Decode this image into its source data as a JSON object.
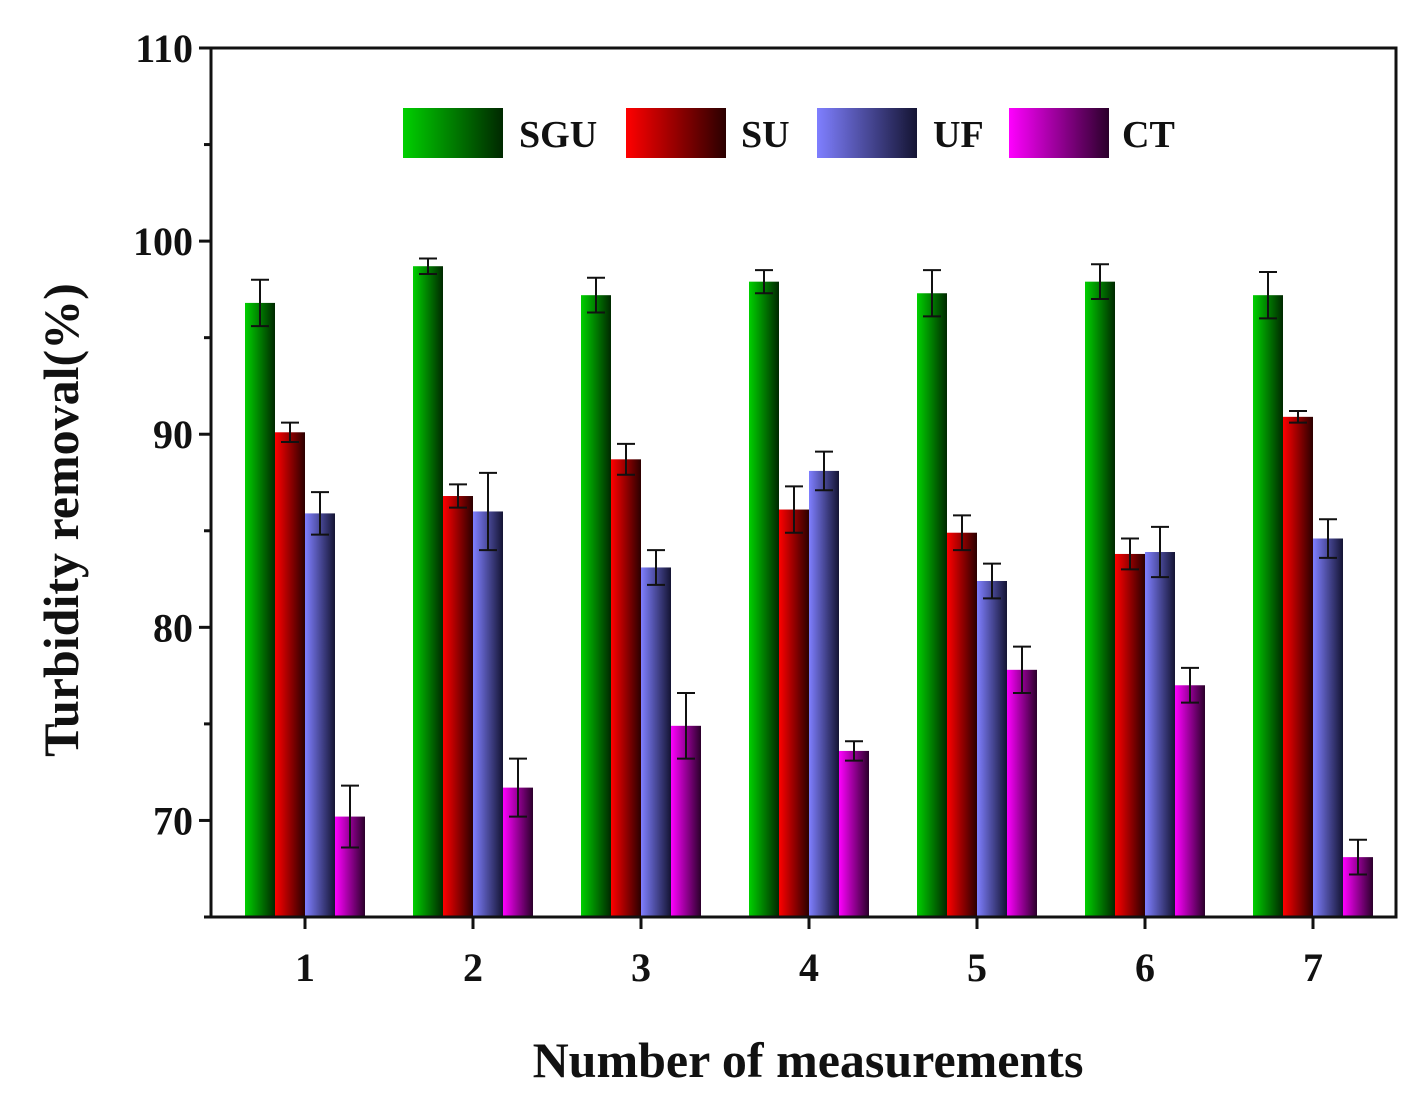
{
  "chart_data": {
    "type": "bar",
    "title": "",
    "xlabel": "Number of measurements",
    "ylabel": "Turbidity removal(%)",
    "ylim": [
      65,
      110
    ],
    "yticks": [
      70,
      80,
      90,
      100,
      110
    ],
    "categories": [
      "1",
      "2",
      "3",
      "4",
      "5",
      "6",
      "7"
    ],
    "series": [
      {
        "name": "SGU",
        "color": "#00d000",
        "color_dark": "#002800",
        "values": [
          96.8,
          98.7,
          97.2,
          97.9,
          97.3,
          97.9,
          97.2
        ],
        "errors": [
          1.2,
          0.4,
          0.9,
          0.6,
          1.2,
          0.9,
          1.2
        ]
      },
      {
        "name": "SU",
        "color": "#ff0000",
        "color_dark": "#2a0000",
        "values": [
          90.1,
          86.8,
          88.7,
          86.1,
          84.9,
          83.8,
          90.9
        ],
        "errors": [
          0.5,
          0.6,
          0.8,
          1.2,
          0.9,
          0.8,
          0.3
        ]
      },
      {
        "name": "UF",
        "color": "#7f7fff",
        "color_dark": "#141433",
        "values": [
          85.9,
          86.0,
          83.1,
          88.1,
          82.4,
          83.9,
          84.6
        ],
        "errors": [
          1.1,
          2.0,
          0.9,
          1.0,
          0.9,
          1.3,
          1.0
        ]
      },
      {
        "name": "CT",
        "color": "#ff00ff",
        "color_dark": "#2a002a",
        "values": [
          70.2,
          71.7,
          74.9,
          73.6,
          77.8,
          77.0,
          68.1
        ],
        "errors": [
          1.6,
          1.5,
          1.7,
          0.5,
          1.2,
          0.9,
          0.9
        ]
      }
    ],
    "legend_position": "top"
  }
}
